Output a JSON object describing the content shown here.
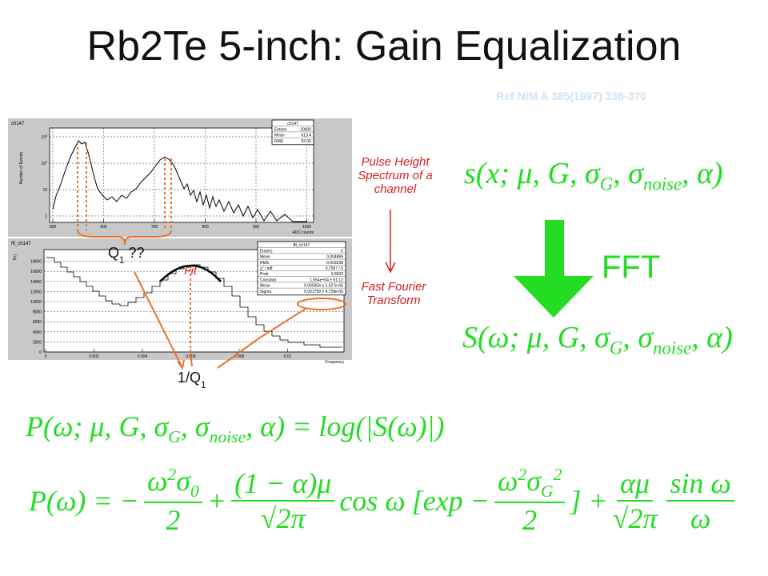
{
  "title": "Rb2Te 5-inch: Gain Equalization",
  "reference": "Ref NIM A 385(1997) 336-370",
  "plot_top": {
    "name": "ch147",
    "stats_title": "ch147",
    "stats": [
      [
        "Entries",
        "20000"
      ],
      [
        "Mean",
        "613.4"
      ],
      [
        "RMS",
        "93.06"
      ]
    ],
    "y_label": "Number of Events",
    "x_label": "ADC counts",
    "x_ticks": [
      "500",
      "600",
      "700",
      "800",
      "900",
      "1000"
    ],
    "y_ticks": [
      [
        "1"
      ],
      [
        "10"
      ],
      [
        "10",
        {
          "sup": "2"
        }
      ],
      [
        "10",
        {
          "sup": "3"
        }
      ]
    ]
  },
  "plot_bottom": {
    "name": "fft_ch147",
    "stats_title": "fft_ch147",
    "stats": [
      [
        "Entries",
        "0"
      ],
      [
        "Mean",
        "0.004899"
      ],
      [
        "RMS",
        "0.003238"
      ],
      [
        [
          "χ",
          {
            "sup": "2"
          },
          " / ndf"
        ],
        "0.7567 / 6"
      ],
      [
        "Prob",
        "0.9932"
      ],
      [
        "Constant",
        "1.554e+04 ± 61.12"
      ],
      [
        "Mean",
        "0.005954 ± 1.527e-05"
      ],
      [
        "Sigma",
        "0.001799 ± 4.739e-05"
      ]
    ],
    "y_label": "f(ν)",
    "x_label": "Frequency",
    "x_ticks": [
      "0",
      "0.002",
      "0.004",
      "0.006",
      "0.008",
      "0.01"
    ],
    "y_ticks": [
      "0",
      "2000",
      "4000",
      "6000",
      "8000",
      "10000",
      "12000",
      "14000",
      "16000",
      "18000"
    ]
  },
  "annotations": {
    "q1": [
      "Q",
      {
        "sub": "1"
      },
      " ??"
    ],
    "inv_q1": [
      "1/Q",
      {
        "sub": "1"
      }
    ],
    "fit": "Fit",
    "pulse_height": "Pulse Height Spectrum of a channel",
    "fft_transform": "Fast Fourier Transform",
    "fft": "FFT"
  },
  "formulas": {
    "signal": [
      "s(x; μ, G, σ",
      {
        "sub": "G"
      },
      ", σ",
      {
        "sub": "noise"
      },
      ", α)"
    ],
    "transform": [
      "S(ω; μ, G, σ",
      {
        "sub": "G"
      },
      ", σ",
      {
        "sub": "noise"
      },
      ", α)"
    ],
    "log_power": [
      "P(ω; μ, G, σ",
      {
        "sub": "G"
      },
      ", σ",
      {
        "sub": "noise"
      },
      ", α) = log(|S(ω)|)"
    ],
    "expansion": {
      "lhs": "P(ω) = −",
      "frac1": {
        "num": [
          "ω",
          {
            "sup": "2"
          },
          "σ",
          {
            "sub": "0"
          }
        ],
        "den": "2"
      },
      "plus1": "+",
      "frac2": {
        "num": "(1 − α)μ",
        "den": "√2π"
      },
      "cos": "cos ω",
      "bracket_open": "[exp −",
      "frac3": {
        "num": [
          "ω",
          {
            "sup": "2"
          },
          "σ",
          {
            "sub": "G"
          },
          {
            "sup": "2"
          }
        ],
        "den": "2"
      },
      "bracket_close": "] +",
      "frac4": {
        "num": "αμ",
        "den": "√2π"
      },
      "frac5": {
        "num": "sin ω",
        "den": "ω"
      }
    }
  }
}
